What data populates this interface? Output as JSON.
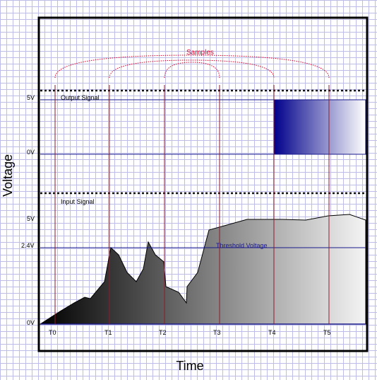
{
  "axes": {
    "x_label": "Time",
    "y_label": "Voltage"
  },
  "annotations": {
    "samples": "Samples",
    "output_signal": "Output Signal",
    "input_signal": "Input Signal",
    "threshold": "Threshold Voltage"
  },
  "voltage_labels": {
    "output_high": "5V",
    "output_low": "0V",
    "input_high": "5V",
    "input_threshold": "2.4V",
    "input_low": "0V"
  },
  "time_ticks": [
    "T0",
    "T1",
    "T2",
    "T3",
    "T4",
    "T5"
  ],
  "colors": {
    "frame": "#000000",
    "signal_fill_dark": "#000000",
    "output_fill": "#00008b",
    "sample_lines": "#8b1a2b",
    "guide_lines": "#1a1a8c",
    "samples_text": "#e0002a"
  }
}
